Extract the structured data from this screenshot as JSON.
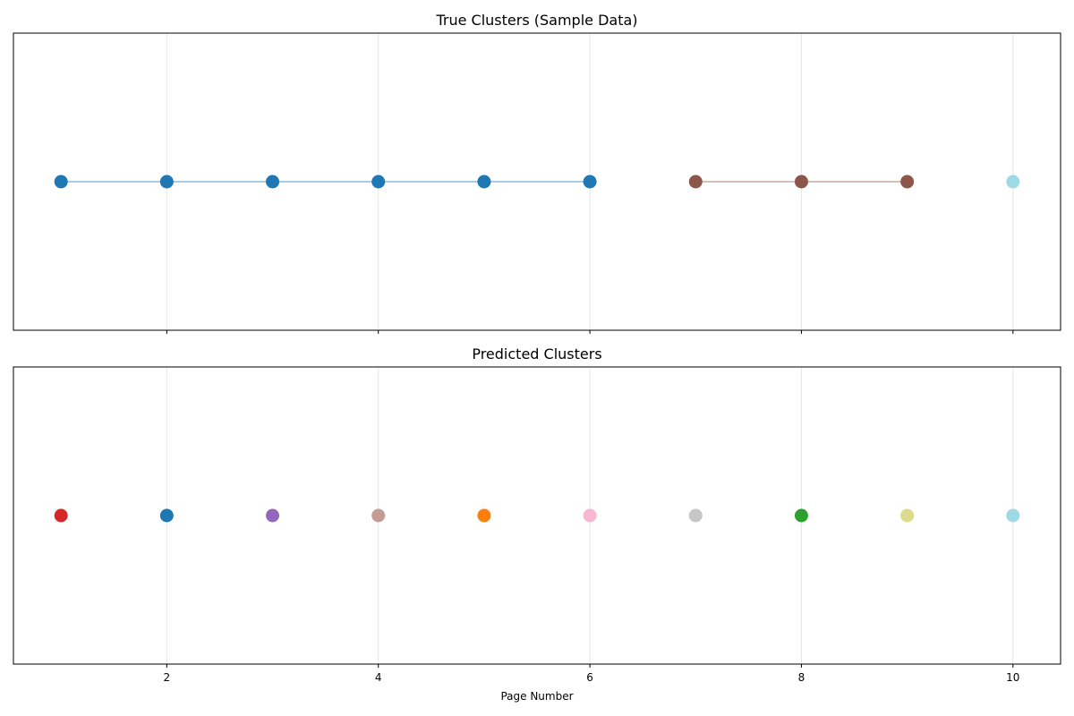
{
  "chart_data": [
    {
      "type": "scatter",
      "title": "True Clusters (Sample Data)",
      "xlabel": "",
      "ylabel": "",
      "xlim": [
        0.55,
        10.45
      ],
      "grid": "x",
      "show_x_tick_labels": false,
      "x_ticks": [
        2,
        4,
        6,
        8,
        10
      ],
      "series": [
        {
          "x": [
            1,
            2,
            3,
            4,
            5,
            6
          ],
          "y": [
            0,
            0,
            0,
            0,
            0,
            0
          ],
          "color": "#1f77b4",
          "connect": true,
          "line_color": "#8cbcdc"
        },
        {
          "x": [
            7,
            8,
            9
          ],
          "y": [
            0,
            0,
            0
          ],
          "color": "#8c564b",
          "connect": true,
          "line_color": "#c8a8a2"
        },
        {
          "x": [
            10
          ],
          "y": [
            0
          ],
          "color": "#9edae5",
          "connect": false
        }
      ]
    },
    {
      "type": "scatter",
      "title": "Predicted Clusters",
      "xlabel": "Page Number",
      "ylabel": "",
      "xlim": [
        0.55,
        10.45
      ],
      "grid": "x",
      "show_x_tick_labels": true,
      "x_ticks": [
        2,
        4,
        6,
        8,
        10
      ],
      "series": [
        {
          "x": [
            1
          ],
          "y": [
            0
          ],
          "color": "#d62728",
          "connect": false
        },
        {
          "x": [
            2
          ],
          "y": [
            0
          ],
          "color": "#1f77b4",
          "connect": false
        },
        {
          "x": [
            3
          ],
          "y": [
            0
          ],
          "color": "#9467bd",
          "connect": false
        },
        {
          "x": [
            4
          ],
          "y": [
            0
          ],
          "color": "#c49c94",
          "connect": false
        },
        {
          "x": [
            5
          ],
          "y": [
            0
          ],
          "color": "#ff7f0e",
          "connect": false
        },
        {
          "x": [
            6
          ],
          "y": [
            0
          ],
          "color": "#f7b6d2",
          "connect": false
        },
        {
          "x": [
            7
          ],
          "y": [
            0
          ],
          "color": "#c7c7c7",
          "connect": false
        },
        {
          "x": [
            8
          ],
          "y": [
            0
          ],
          "color": "#2ca02c",
          "connect": false
        },
        {
          "x": [
            9
          ],
          "y": [
            0
          ],
          "color": "#dbdb8d",
          "connect": false
        },
        {
          "x": [
            10
          ],
          "y": [
            0
          ],
          "color": "#9edae5",
          "connect": false
        }
      ]
    }
  ]
}
